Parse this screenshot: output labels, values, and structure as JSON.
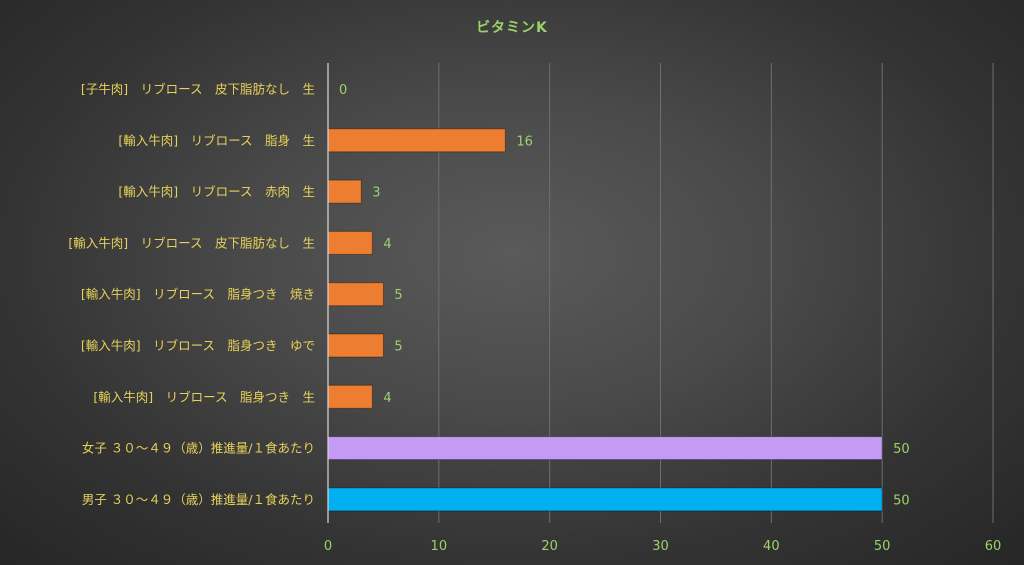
{
  "chart_data": {
    "type": "bar",
    "orientation": "horizontal",
    "title": "ビタミンK",
    "categories": [
      "[子牛肉]　リブロース　皮下脂肪なし　生",
      "[輸入牛肉]　リブロース　脂身　生",
      "[輸入牛肉]　リブロース　赤肉　生",
      "[輸入牛肉]　リブロース　皮下脂肪なし　生",
      "[輸入牛肉]　リブロース　脂身つき　焼き",
      "[輸入牛肉]　リブロース　脂身つき　ゆで",
      "[輸入牛肉]　リブロース　脂身つき　生",
      "女子 ３０～４９（歳）推進量/１食あたり",
      "男子 ３０～４９（歳）推進量/１食あたり"
    ],
    "values": [
      0,
      16,
      3,
      4,
      5,
      5,
      4,
      50,
      50
    ],
    "bar_colors": [
      "#ed7d31",
      "#ed7d31",
      "#ed7d31",
      "#ed7d31",
      "#ed7d31",
      "#ed7d31",
      "#ed7d31",
      "#c39bf5",
      "#00b0f0"
    ],
    "xlim": [
      0,
      60
    ],
    "xticks": [
      0,
      10,
      20,
      30,
      40,
      50,
      60
    ],
    "grid": true,
    "legend": "none",
    "colors": {
      "title": "#9bd36a",
      "category_labels": "#e6d25a",
      "tick_labels": "#9bd36a",
      "data_labels": "#9bd36a",
      "gridlines": "#6e6e6e"
    }
  }
}
